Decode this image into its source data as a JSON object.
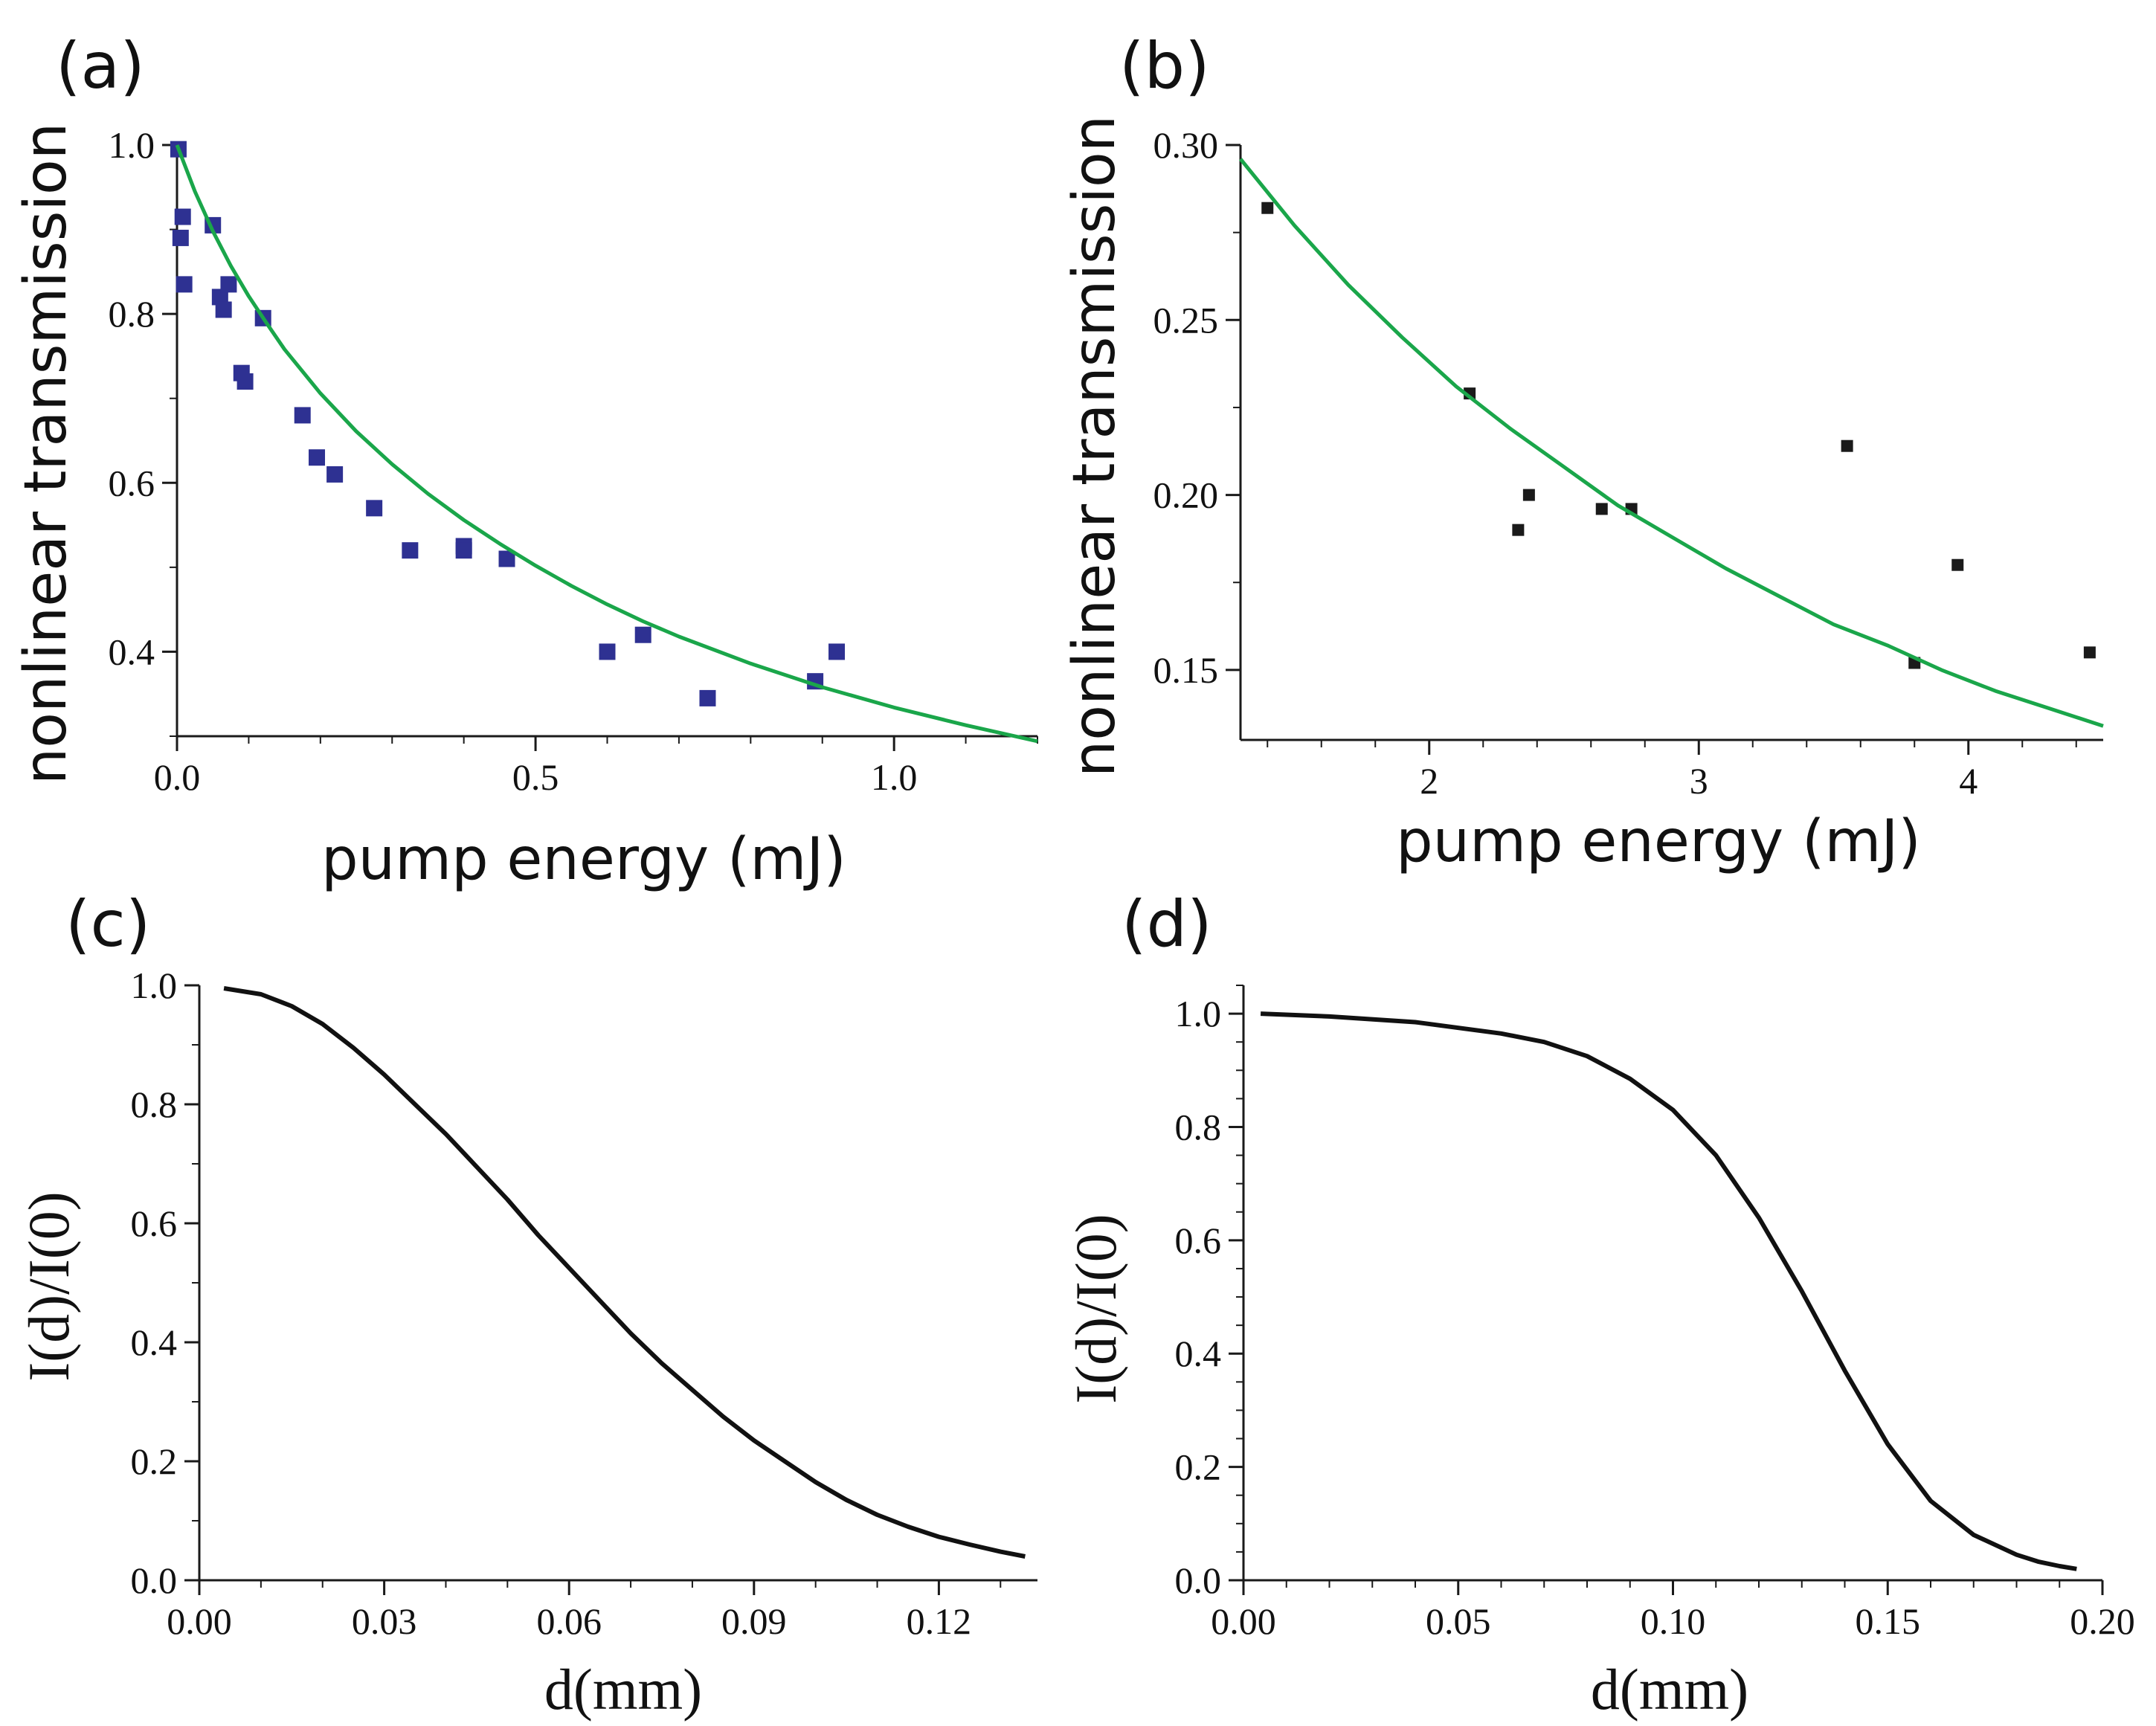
{
  "figure": {
    "colors": {
      "axis": "#1a1a1a",
      "fit_line": "#1aa64a",
      "marker_a": "#2e3192",
      "marker_b": "#1a1a1a",
      "curve": "#111111"
    }
  },
  "chart_data": [
    {
      "id": "a",
      "panel_label": "(a)",
      "type": "scatter",
      "title": "",
      "xlabel": "pump energy (mJ)",
      "ylabel": "nonlinear transmission",
      "xlim": [
        0,
        1.2
      ],
      "ylim": [
        0.3,
        1.0
      ],
      "xticks": [
        0.0,
        0.5,
        1.0
      ],
      "xtick_labels": [
        "0.0",
        "0.5",
        "1.0"
      ],
      "yticks": [
        0.4,
        0.6,
        0.8,
        1.0
      ],
      "ytick_labels": [
        "0.4",
        "0.6",
        "0.8",
        "1.0"
      ],
      "series": [
        {
          "name": "measured",
          "kind": "markers",
          "marker_color": "#2e3192",
          "x": [
            0.002,
            0.008,
            0.005,
            0.01,
            0.05,
            0.06,
            0.065,
            0.072,
            0.09,
            0.095,
            0.12,
            0.175,
            0.195,
            0.22,
            0.275,
            0.325,
            0.4,
            0.4,
            0.46,
            0.6,
            0.65,
            0.74,
            0.89,
            0.92
          ],
          "y": [
            0.995,
            0.915,
            0.89,
            0.835,
            0.905,
            0.82,
            0.805,
            0.835,
            0.73,
            0.72,
            0.795,
            0.68,
            0.63,
            0.61,
            0.57,
            0.52,
            0.525,
            0.52,
            0.51,
            0.4,
            0.42,
            0.345,
            0.365,
            0.4
          ]
        },
        {
          "name": "fit",
          "kind": "line",
          "line_color": "#1aa64a",
          "x": [
            0.0,
            0.025,
            0.05,
            0.075,
            0.1,
            0.125,
            0.15,
            0.2,
            0.25,
            0.3,
            0.35,
            0.4,
            0.45,
            0.5,
            0.55,
            0.6,
            0.65,
            0.7,
            0.8,
            0.9,
            1.0,
            1.1,
            1.2
          ],
          "y": [
            1.0,
            0.945,
            0.898,
            0.857,
            0.821,
            0.789,
            0.758,
            0.706,
            0.661,
            0.622,
            0.587,
            0.556,
            0.528,
            0.502,
            0.478,
            0.456,
            0.436,
            0.418,
            0.386,
            0.358,
            0.334,
            0.313,
            0.294
          ]
        }
      ]
    },
    {
      "id": "b",
      "panel_label": "(b)",
      "type": "scatter",
      "title": "",
      "xlabel": "pump energy (mJ)",
      "ylabel": "nonlinear transmission",
      "xlim": [
        1.3,
        4.5
      ],
      "ylim": [
        0.13,
        0.3
      ],
      "xticks": [
        2,
        3,
        4
      ],
      "xtick_labels": [
        "2",
        "3",
        "4"
      ],
      "yticks": [
        0.15,
        0.2,
        0.25,
        0.3
      ],
      "ytick_labels": [
        "0.15",
        "0.20",
        "0.25",
        "0.30"
      ],
      "series": [
        {
          "name": "measured",
          "kind": "markers",
          "marker_color": "#1a1a1a",
          "x": [
            1.4,
            2.15,
            2.33,
            2.37,
            2.64,
            2.75,
            3.55,
            3.8,
            3.96,
            4.45
          ],
          "y": [
            0.282,
            0.229,
            0.19,
            0.2,
            0.196,
            0.196,
            0.214,
            0.152,
            0.18,
            0.155
          ]
        },
        {
          "name": "fit",
          "kind": "line",
          "line_color": "#1aa64a",
          "x": [
            1.3,
            1.5,
            1.7,
            1.9,
            2.1,
            2.3,
            2.5,
            2.7,
            2.9,
            3.1,
            3.3,
            3.5,
            3.7,
            3.9,
            4.1,
            4.3,
            4.5
          ],
          "y": [
            0.296,
            0.277,
            0.26,
            0.245,
            0.231,
            0.219,
            0.208,
            0.197,
            0.188,
            0.179,
            0.171,
            0.163,
            0.157,
            0.15,
            0.144,
            0.139,
            0.134
          ]
        }
      ]
    },
    {
      "id": "c",
      "panel_label": "(c)",
      "type": "line",
      "title": "",
      "xlabel": "d(mm)",
      "ylabel": "I(d)/I(0)",
      "xlim": [
        0,
        0.136
      ],
      "ylim": [
        0,
        1.0
      ],
      "xticks": [
        0.0,
        0.03,
        0.06,
        0.09,
        0.12
      ],
      "xtick_labels": [
        "0.00",
        "0.03",
        "0.06",
        "0.09",
        "0.12"
      ],
      "yticks": [
        0.0,
        0.2,
        0.4,
        0.6,
        0.8,
        1.0
      ],
      "ytick_labels": [
        "0.0",
        "0.2",
        "0.4",
        "0.6",
        "0.8",
        "1.0"
      ],
      "series": [
        {
          "name": "profile",
          "kind": "line",
          "line_color": "#111111",
          "x": [
            0.004,
            0.01,
            0.015,
            0.02,
            0.025,
            0.03,
            0.035,
            0.04,
            0.045,
            0.05,
            0.055,
            0.06,
            0.065,
            0.07,
            0.075,
            0.08,
            0.085,
            0.09,
            0.095,
            0.1,
            0.105,
            0.11,
            0.115,
            0.12,
            0.125,
            0.13,
            0.134
          ],
          "y": [
            0.995,
            0.985,
            0.965,
            0.935,
            0.895,
            0.85,
            0.8,
            0.75,
            0.695,
            0.64,
            0.58,
            0.525,
            0.47,
            0.415,
            0.365,
            0.32,
            0.275,
            0.235,
            0.2,
            0.165,
            0.135,
            0.11,
            0.09,
            0.073,
            0.06,
            0.048,
            0.04
          ]
        }
      ]
    },
    {
      "id": "d",
      "panel_label": "(d)",
      "type": "line",
      "title": "",
      "xlabel": "d(mm)",
      "ylabel": "I(d)/I(0)",
      "xlim": [
        0,
        0.2
      ],
      "ylim": [
        0,
        1.05
      ],
      "xticks": [
        0.0,
        0.05,
        0.1,
        0.15,
        0.2
      ],
      "xtick_labels": [
        "0.00",
        "0.05",
        "0.10",
        "0.15",
        "0.20"
      ],
      "yticks": [
        0.0,
        0.2,
        0.4,
        0.6,
        0.8,
        1.0
      ],
      "ytick_labels": [
        "0.0",
        "0.2",
        "0.4",
        "0.6",
        "0.8",
        "1.0"
      ],
      "series": [
        {
          "name": "profile",
          "kind": "line",
          "line_color": "#111111",
          "x": [
            0.004,
            0.02,
            0.04,
            0.06,
            0.07,
            0.08,
            0.09,
            0.1,
            0.11,
            0.12,
            0.13,
            0.14,
            0.15,
            0.16,
            0.17,
            0.18,
            0.185,
            0.19,
            0.194
          ],
          "y": [
            1.0,
            0.995,
            0.985,
            0.965,
            0.95,
            0.925,
            0.885,
            0.83,
            0.75,
            0.64,
            0.51,
            0.37,
            0.24,
            0.14,
            0.08,
            0.045,
            0.033,
            0.025,
            0.02
          ]
        }
      ]
    }
  ]
}
